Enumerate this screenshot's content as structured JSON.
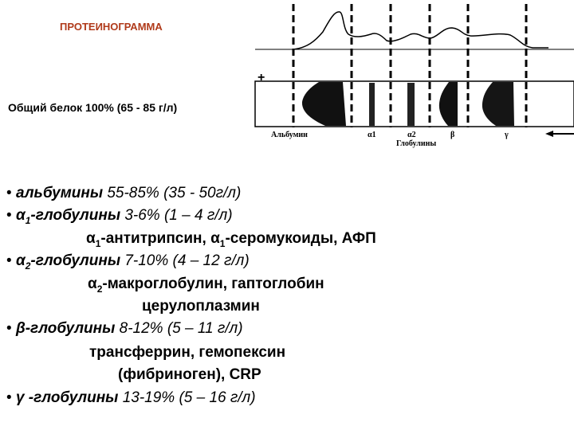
{
  "header": {
    "title": "ПРОТЕИНОГРАММА",
    "total_protein": "Общий белок   100% (65 -  85 г/л)"
  },
  "diagram": {
    "plus_sign": "+",
    "labels": {
      "albumin": "Альбумин",
      "alpha1": "α1",
      "alpha2": "α2",
      "beta": "β",
      "gamma": "γ",
      "globulins": "Глобулины"
    }
  },
  "fractions": [
    {
      "bullet": "•",
      "name": "альбумины",
      "sub": "",
      "name_suffix": "",
      "values": " 55-85%   (35 - 50г/л)"
    },
    {
      "bullet": "•",
      "name": "α",
      "sub": "1",
      "name_suffix": "-глобулины",
      "values": " 3-6%   (1 – 4 г/л)"
    },
    {
      "bullet": "•",
      "name": "α",
      "sub": "2",
      "name_suffix": "-глобулины",
      "values": " 7-10% (4 – 12 г/л)"
    },
    {
      "bullet": "•",
      "name": "β-глобулины",
      "sub": "",
      "name_suffix": "",
      "values": " 8-12% (5 – 11 г/л)"
    },
    {
      "bullet": "•",
      "name": "γ -глобулины",
      "sub": "",
      "name_suffix": "",
      "values": " 13-19% (5 – 16 г/л)"
    }
  ],
  "components": {
    "alpha1_a": "α",
    "alpha1_a_sub": "1",
    "alpha1_a_rest": "-антитрипсин, ",
    "alpha1_b": "α",
    "alpha1_b_sub": "1",
    "alpha1_b_rest": "-серомукоиды, АФП",
    "alpha2_a": "α",
    "alpha2_a_sub": "2",
    "alpha2_a_rest": "-макроглобулин, гаптоглобин",
    "alpha2_b": "церулоплазмин",
    "beta_a": "трансферрин, гемопексин",
    "beta_b": "(фибриноген), CRP"
  }
}
